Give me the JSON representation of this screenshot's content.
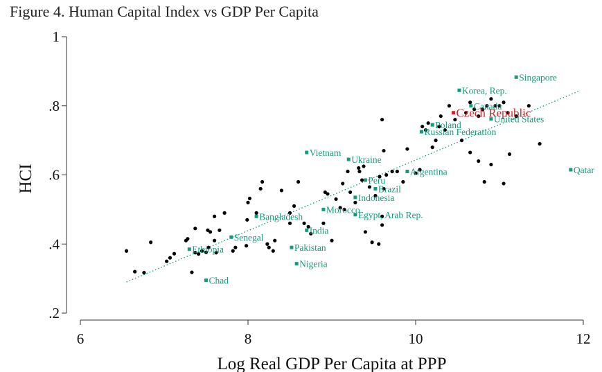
{
  "title": "Figure 4. Human Capital Index vs GDP Per Capita",
  "colors": {
    "points": "#000000",
    "labeled": "#1a9a7c",
    "highlight": "#d2222a",
    "trend": "#1a9a7c",
    "axis": "#333333"
  },
  "chart_data": {
    "type": "scatter",
    "title": "Figure 4. Human Capital Index vs GDP Per Capita",
    "xlabel": "Log Real GDP Per Capita at PPP",
    "ylabel": "HCI",
    "xlim": [
      6,
      12
    ],
    "ylim": [
      0.2,
      1.0
    ],
    "xticks": [
      6,
      8,
      10,
      12
    ],
    "xtick_labels": [
      "6",
      "8",
      "10",
      "12"
    ],
    "yticks": [
      0.2,
      0.4,
      0.6,
      0.8,
      1.0
    ],
    "ytick_labels": [
      ".2",
      ".4",
      ".6",
      ".8",
      "1"
    ],
    "trend_line": {
      "style": "dotted",
      "x": [
        6.55,
        11.95
      ],
      "y": [
        0.29,
        0.843
      ]
    },
    "labeled_points": [
      {
        "name": "Singapore",
        "x": 11.2,
        "y": 0.883,
        "highlight": false
      },
      {
        "name": "Korea, Rep.",
        "x": 10.52,
        "y": 0.845,
        "highlight": false
      },
      {
        "name": "Canada",
        "x": 10.66,
        "y": 0.8,
        "highlight": false
      },
      {
        "name": "Czech Republic",
        "x": 10.45,
        "y": 0.78,
        "highlight": true
      },
      {
        "name": "United States",
        "x": 10.9,
        "y": 0.762,
        "highlight": false
      },
      {
        "name": "Poland",
        "x": 10.2,
        "y": 0.745,
        "highlight": false
      },
      {
        "name": "Russian Federation",
        "x": 10.07,
        "y": 0.725,
        "highlight": false
      },
      {
        "name": "Qatar",
        "x": 11.85,
        "y": 0.615,
        "highlight": false
      },
      {
        "name": "Vietnam",
        "x": 8.7,
        "y": 0.665,
        "highlight": false
      },
      {
        "name": "Ukraine",
        "x": 9.2,
        "y": 0.645,
        "highlight": false
      },
      {
        "name": "Argentina",
        "x": 9.9,
        "y": 0.61,
        "highlight": false
      },
      {
        "name": "Peru",
        "x": 9.4,
        "y": 0.585,
        "highlight": false
      },
      {
        "name": "Brazil",
        "x": 9.52,
        "y": 0.56,
        "highlight": false
      },
      {
        "name": "Indonesia",
        "x": 9.28,
        "y": 0.535,
        "highlight": false
      },
      {
        "name": "Morocco",
        "x": 8.9,
        "y": 0.5,
        "highlight": false
      },
      {
        "name": "Egypt, Arab Rep.",
        "x": 9.28,
        "y": 0.485,
        "highlight": false
      },
      {
        "name": "Bangladesh",
        "x": 8.1,
        "y": 0.48,
        "highlight": false
      },
      {
        "name": "India",
        "x": 8.7,
        "y": 0.44,
        "highlight": false
      },
      {
        "name": "Senegal",
        "x": 7.8,
        "y": 0.42,
        "highlight": false
      },
      {
        "name": "Ethiopia",
        "x": 7.3,
        "y": 0.385,
        "highlight": false
      },
      {
        "name": "Pakistan",
        "x": 8.52,
        "y": 0.39,
        "highlight": false
      },
      {
        "name": "Nigeria",
        "x": 8.58,
        "y": 0.343,
        "highlight": false
      },
      {
        "name": "Chad",
        "x": 7.5,
        "y": 0.295,
        "highlight": false
      }
    ],
    "points": [
      [
        6.55,
        0.38
      ],
      [
        6.65,
        0.32
      ],
      [
        6.76,
        0.317
      ],
      [
        6.84,
        0.405
      ],
      [
        7.03,
        0.35
      ],
      [
        7.07,
        0.36
      ],
      [
        7.12,
        0.372
      ],
      [
        7.26,
        0.41
      ],
      [
        7.28,
        0.415
      ],
      [
        7.33,
        0.318
      ],
      [
        7.37,
        0.445
      ],
      [
        7.37,
        0.375
      ],
      [
        7.41,
        0.371
      ],
      [
        7.45,
        0.38
      ],
      [
        7.5,
        0.376
      ],
      [
        7.52,
        0.44
      ],
      [
        7.53,
        0.39
      ],
      [
        7.55,
        0.435
      ],
      [
        7.6,
        0.41
      ],
      [
        7.6,
        0.48
      ],
      [
        7.62,
        0.375
      ],
      [
        7.66,
        0.44
      ],
      [
        7.72,
        0.49
      ],
      [
        7.82,
        0.38
      ],
      [
        7.85,
        0.39
      ],
      [
        7.98,
        0.395
      ],
      [
        7.99,
        0.47
      ],
      [
        8.0,
        0.52
      ],
      [
        8.02,
        0.532
      ],
      [
        8.1,
        0.49
      ],
      [
        8.15,
        0.56
      ],
      [
        8.17,
        0.58
      ],
      [
        8.23,
        0.4
      ],
      [
        8.25,
        0.39
      ],
      [
        8.3,
        0.38
      ],
      [
        8.32,
        0.41
      ],
      [
        8.4,
        0.555
      ],
      [
        8.5,
        0.46
      ],
      [
        8.5,
        0.49
      ],
      [
        8.55,
        0.51
      ],
      [
        8.6,
        0.58
      ],
      [
        8.67,
        0.46
      ],
      [
        8.72,
        0.45
      ],
      [
        8.75,
        0.43
      ],
      [
        8.9,
        0.46
      ],
      [
        8.92,
        0.55
      ],
      [
        8.95,
        0.545
      ],
      [
        9.0,
        0.41
      ],
      [
        9.05,
        0.53
      ],
      [
        9.1,
        0.505
      ],
      [
        9.13,
        0.575
      ],
      [
        9.15,
        0.5
      ],
      [
        9.19,
        0.61
      ],
      [
        9.22,
        0.55
      ],
      [
        9.28,
        0.52
      ],
      [
        9.32,
        0.62
      ],
      [
        9.33,
        0.61
      ],
      [
        9.36,
        0.585
      ],
      [
        9.38,
        0.625
      ],
      [
        9.4,
        0.435
      ],
      [
        9.45,
        0.565
      ],
      [
        9.48,
        0.405
      ],
      [
        9.52,
        0.54
      ],
      [
        9.56,
        0.4
      ],
      [
        9.57,
        0.595
      ],
      [
        9.6,
        0.455
      ],
      [
        9.6,
        0.48
      ],
      [
        9.62,
        0.67
      ],
      [
        9.62,
        0.56
      ],
      [
        9.65,
        0.6
      ],
      [
        9.72,
        0.61
      ],
      [
        9.78,
        0.61
      ],
      [
        9.85,
        0.58
      ],
      [
        9.9,
        0.675
      ],
      [
        10.0,
        0.605
      ],
      [
        10.05,
        0.615
      ],
      [
        10.08,
        0.74
      ],
      [
        10.12,
        0.73
      ],
      [
        10.15,
        0.75
      ],
      [
        10.2,
        0.68
      ],
      [
        10.24,
        0.7
      ],
      [
        10.28,
        0.74
      ],
      [
        10.3,
        0.77
      ],
      [
        10.35,
        0.73
      ],
      [
        10.4,
        0.8
      ],
      [
        10.47,
        0.76
      ],
      [
        10.55,
        0.7
      ],
      [
        10.6,
        0.78
      ],
      [
        10.65,
        0.81
      ],
      [
        10.7,
        0.79
      ],
      [
        10.75,
        0.77
      ],
      [
        10.8,
        0.79
      ],
      [
        10.85,
        0.8
      ],
      [
        10.9,
        0.82
      ],
      [
        10.95,
        0.8
      ],
      [
        11.0,
        0.8
      ],
      [
        11.05,
        0.81
      ],
      [
        11.1,
        0.78
      ],
      [
        11.12,
        0.66
      ],
      [
        10.9,
        0.63
      ],
      [
        10.75,
        0.64
      ],
      [
        10.82,
        0.58
      ],
      [
        11.05,
        0.575
      ],
      [
        11.2,
        0.77
      ],
      [
        11.35,
        0.8
      ],
      [
        11.48,
        0.69
      ],
      [
        9.6,
        0.76
      ],
      [
        10.65,
        0.665
      ]
    ]
  }
}
